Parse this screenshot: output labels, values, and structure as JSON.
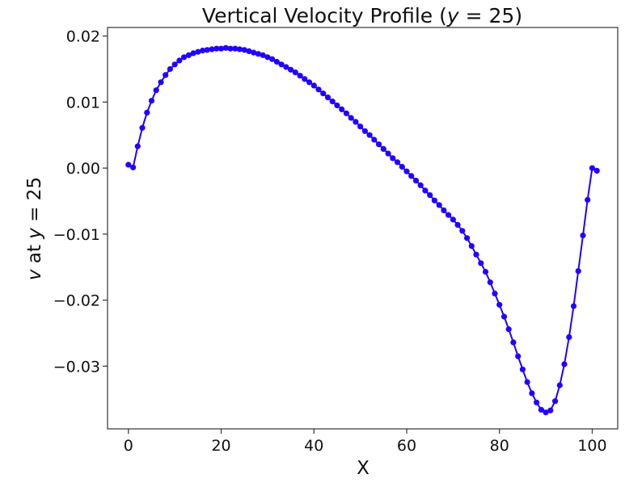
{
  "colors": {
    "series": "#2200ff",
    "axes": "#333333",
    "background": "#ffffff"
  },
  "chart_data": {
    "type": "line",
    "marker": "circle",
    "grid": false,
    "legend": "none",
    "title": {
      "prefix": "Vertical Velocity Profile (",
      "var": "y",
      "suffix": " = 25)"
    },
    "xlabel": "X",
    "ylabel": {
      "var1": "v",
      "mid": " at ",
      "var2": "y",
      "suffix": " = 25"
    },
    "xlim": [
      -4.5,
      105.5
    ],
    "ylim": [
      -0.0395,
      0.0213
    ],
    "xticks": [
      0,
      20,
      40,
      60,
      80,
      100
    ],
    "xtick_labels": [
      "0",
      "20",
      "40",
      "60",
      "80",
      "100"
    ],
    "yticks": [
      0.02,
      0.01,
      0.0,
      -0.01,
      -0.02,
      -0.03
    ],
    "ytick_labels": [
      "0.02",
      "0.01",
      "0.00",
      "−0.01",
      "−0.02",
      "−0.03"
    ],
    "series": [
      {
        "x": [
          0,
          1,
          2,
          3,
          4,
          5,
          6,
          7,
          8,
          9,
          10,
          11,
          12,
          13,
          14,
          15,
          16,
          17,
          18,
          19,
          20,
          21,
          22,
          23,
          24,
          25,
          26,
          27,
          28,
          29,
          30,
          31,
          32,
          33,
          34,
          35,
          36,
          37,
          38,
          39,
          40,
          41,
          42,
          43,
          44,
          45,
          46,
          47,
          48,
          49,
          50,
          51,
          52,
          53,
          54,
          55,
          56,
          57,
          58,
          59,
          60,
          61,
          62,
          63,
          64,
          65,
          66,
          67,
          68,
          69,
          70,
          71,
          72,
          73,
          74,
          75,
          76,
          77,
          78,
          79,
          80,
          81,
          82,
          83,
          84,
          85,
          86,
          87,
          88,
          89,
          90,
          91,
          92,
          93,
          94,
          95,
          96,
          97,
          98,
          99,
          100,
          101
        ],
        "y": [
          0.0005,
          0.0001,
          0.0033,
          0.0061,
          0.0084,
          0.0102,
          0.0118,
          0.013,
          0.0141,
          0.015,
          0.0157,
          0.0163,
          0.0168,
          0.0171,
          0.0174,
          0.0176,
          0.0178,
          0.0179,
          0.018,
          0.0181,
          0.0181,
          0.0182,
          0.0181,
          0.0181,
          0.018,
          0.0179,
          0.0177,
          0.0175,
          0.0173,
          0.0171,
          0.0168,
          0.0165,
          0.0161,
          0.0157,
          0.0153,
          0.0149,
          0.0145,
          0.014,
          0.0135,
          0.013,
          0.0125,
          0.0119,
          0.0113,
          0.0107,
          0.0101,
          0.0095,
          0.0089,
          0.0083,
          0.0076,
          0.007,
          0.0063,
          0.0056,
          0.005,
          0.0043,
          0.0036,
          0.0029,
          0.0022,
          0.0015,
          0.0009,
          0.0002,
          -0.0005,
          -0.0012,
          -0.0019,
          -0.0026,
          -0.0034,
          -0.0041,
          -0.0049,
          -0.0056,
          -0.0064,
          -0.0071,
          -0.0078,
          -0.0086,
          -0.0095,
          -0.0106,
          -0.0118,
          -0.0131,
          -0.0144,
          -0.0157,
          -0.0173,
          -0.019,
          -0.0207,
          -0.0225,
          -0.0244,
          -0.0264,
          -0.0285,
          -0.0305,
          -0.0324,
          -0.0341,
          -0.0355,
          -0.0366,
          -0.037,
          -0.0367,
          -0.0353,
          -0.0329,
          -0.0297,
          -0.0256,
          -0.0209,
          -0.0156,
          -0.0102,
          -0.0048,
          0.0,
          -0.0004
        ]
      }
    ]
  }
}
